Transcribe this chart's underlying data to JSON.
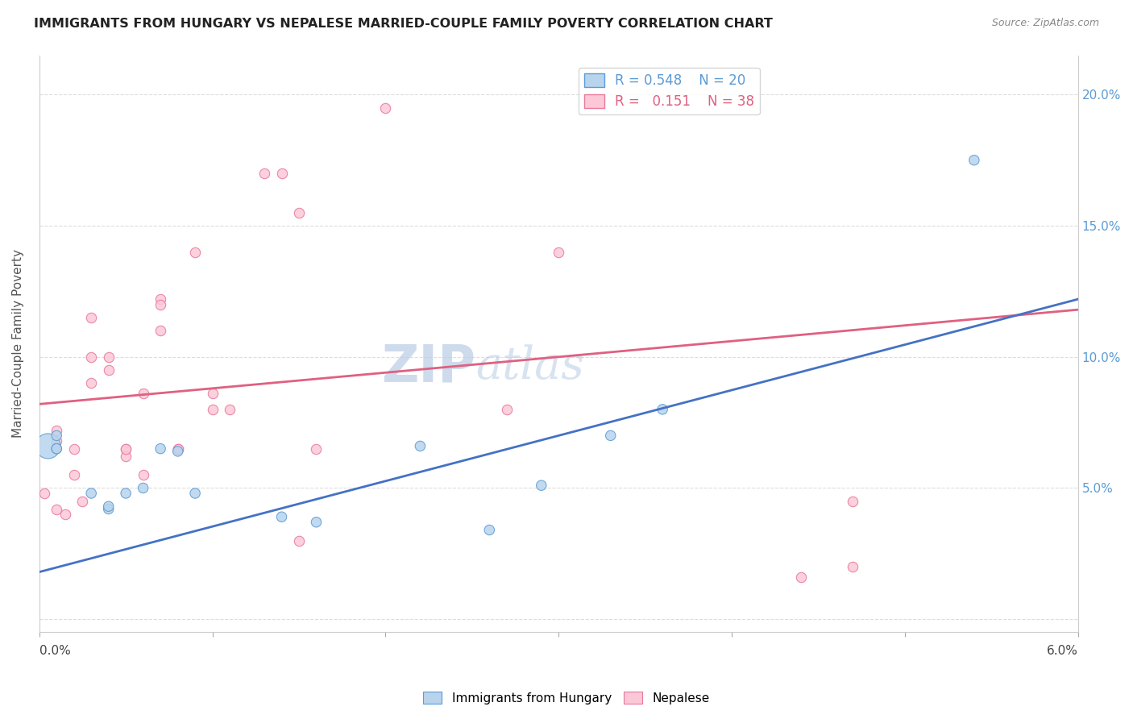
{
  "title": "IMMIGRANTS FROM HUNGARY VS NEPALESE MARRIED-COUPLE FAMILY POVERTY CORRELATION CHART",
  "source": "Source: ZipAtlas.com",
  "ylabel": "Married-Couple Family Poverty",
  "yticks": [
    "",
    "5.0%",
    "10.0%",
    "15.0%",
    "20.0%"
  ],
  "ytick_vals": [
    0.0,
    0.05,
    0.1,
    0.15,
    0.2
  ],
  "xlim": [
    0.0,
    0.06
  ],
  "ylim": [
    -0.005,
    0.215
  ],
  "legend_r_hungary": "0.548",
  "legend_n_hungary": "20",
  "legend_r_nepalese": "0.151",
  "legend_n_nepalese": "38",
  "color_hungary_fill": "#b8d4ed",
  "color_nepalese_fill": "#fcc8d8",
  "color_hungary_edge": "#5b9bd5",
  "color_nepalese_edge": "#e8789a",
  "color_hungary_line": "#4472c4",
  "color_nepalese_line": "#e06080",
  "hungary_line_x": [
    0.0,
    0.06
  ],
  "hungary_line_y": [
    0.018,
    0.122
  ],
  "nepalese_line_x": [
    0.0,
    0.06
  ],
  "nepalese_line_y": [
    0.082,
    0.118
  ],
  "hungary_x": [
    0.0005,
    0.001,
    0.001,
    0.001,
    0.003,
    0.004,
    0.004,
    0.005,
    0.006,
    0.007,
    0.008,
    0.009,
    0.014,
    0.016,
    0.022,
    0.026,
    0.029,
    0.033,
    0.036,
    0.054
  ],
  "hungary_y": [
    0.066,
    0.065,
    0.065,
    0.07,
    0.048,
    0.042,
    0.043,
    0.048,
    0.05,
    0.065,
    0.064,
    0.048,
    0.039,
    0.037,
    0.066,
    0.034,
    0.051,
    0.07,
    0.08,
    0.175
  ],
  "hungary_sizes": [
    500,
    80,
    80,
    80,
    80,
    80,
    80,
    80,
    80,
    80,
    80,
    80,
    80,
    80,
    80,
    80,
    80,
    80,
    80,
    80
  ],
  "nepalese_x": [
    0.0003,
    0.001,
    0.001,
    0.001,
    0.0015,
    0.002,
    0.002,
    0.0025,
    0.003,
    0.003,
    0.003,
    0.004,
    0.004,
    0.005,
    0.005,
    0.005,
    0.006,
    0.006,
    0.007,
    0.007,
    0.007,
    0.008,
    0.008,
    0.009,
    0.01,
    0.01,
    0.011,
    0.013,
    0.014,
    0.015,
    0.015,
    0.016,
    0.02,
    0.027,
    0.03,
    0.044,
    0.047,
    0.047
  ],
  "nepalese_y": [
    0.048,
    0.072,
    0.068,
    0.042,
    0.04,
    0.065,
    0.055,
    0.045,
    0.09,
    0.1,
    0.115,
    0.1,
    0.095,
    0.065,
    0.062,
    0.065,
    0.086,
    0.055,
    0.122,
    0.12,
    0.11,
    0.065,
    0.065,
    0.14,
    0.086,
    0.08,
    0.08,
    0.17,
    0.17,
    0.155,
    0.03,
    0.065,
    0.195,
    0.08,
    0.14,
    0.016,
    0.02,
    0.045
  ],
  "marker_size": 80,
  "alpha": 0.85
}
